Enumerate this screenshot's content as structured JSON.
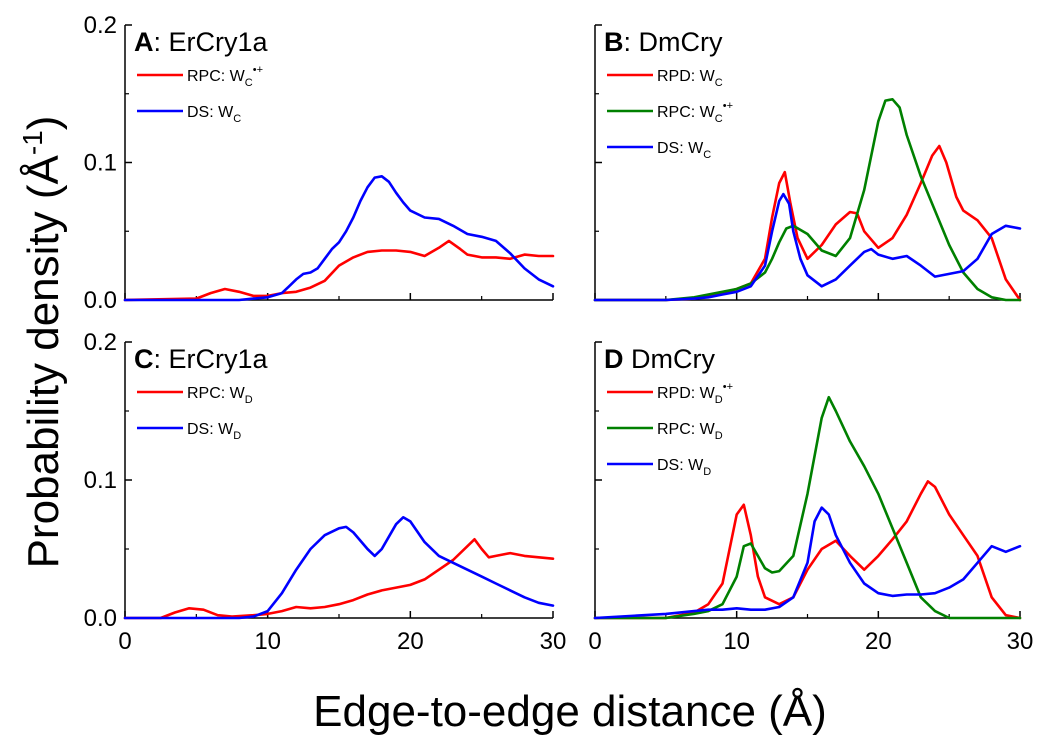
{
  "figure": {
    "ylabel_main": "Probability density (Å",
    "ylabel_sup": "-1",
    "ylabel_end": ")",
    "xlabel": "Edge-to-edge distance (Å)"
  },
  "chart_data": [
    {
      "type": "line",
      "panel_letter": "A",
      "panel_title": ": ErCry1a",
      "xlim": [
        0,
        30
      ],
      "ylim": [
        0,
        0.2
      ],
      "xticks": [
        "0",
        "10",
        "20",
        "30"
      ],
      "yticks": [
        "0.0",
        "0.1",
        "0.2"
      ],
      "legend_placement": "top-left",
      "series": [
        {
          "name": "RPC: W",
          "sub": "C",
          "sup": "•+",
          "color": "#ff0000",
          "x": [
            0,
            5,
            6,
            7,
            8,
            9,
            10,
            11,
            12,
            13,
            14,
            15,
            16,
            17,
            18,
            19,
            20,
            21,
            22,
            22.7,
            23.5,
            24,
            25,
            26,
            27,
            28,
            29,
            30
          ],
          "y": [
            0,
            0.001,
            0.005,
            0.008,
            0.006,
            0.003,
            0.003,
            0.005,
            0.006,
            0.009,
            0.014,
            0.025,
            0.031,
            0.035,
            0.036,
            0.036,
            0.035,
            0.032,
            0.038,
            0.043,
            0.037,
            0.033,
            0.031,
            0.031,
            0.03,
            0.033,
            0.032,
            0.032
          ]
        },
        {
          "name": "DS:   W",
          "sub": "C",
          "sup": "",
          "color": "#0000ff",
          "x": [
            0,
            8,
            9,
            10,
            11,
            11.5,
            12,
            12.5,
            13,
            13.5,
            14,
            14.5,
            15,
            15.5,
            16,
            16.5,
            17,
            17.5,
            18,
            18.5,
            19,
            19.5,
            20,
            21,
            22,
            23,
            24,
            25,
            26,
            27,
            28,
            29,
            30
          ],
          "y": [
            0,
            0,
            0.001,
            0.002,
            0.005,
            0.01,
            0.015,
            0.019,
            0.02,
            0.023,
            0.03,
            0.037,
            0.042,
            0.05,
            0.06,
            0.072,
            0.082,
            0.089,
            0.09,
            0.086,
            0.078,
            0.071,
            0.065,
            0.06,
            0.059,
            0.054,
            0.048,
            0.046,
            0.043,
            0.034,
            0.023,
            0.015,
            0.01
          ]
        }
      ]
    },
    {
      "type": "line",
      "panel_letter": "B",
      "panel_title": ": DmCry",
      "xlim": [
        0,
        30
      ],
      "ylim": [
        0,
        0.2
      ],
      "xticks": [
        "0",
        "10",
        "20",
        "30"
      ],
      "yticks": [],
      "legend_placement": "top-left",
      "series": [
        {
          "name": "RPD: W",
          "sub": "C",
          "sup": "",
          "color": "#ff0000",
          "x": [
            0,
            5,
            7,
            8,
            9,
            10,
            11,
            12,
            12.5,
            13,
            13.4,
            13.8,
            14.3,
            15,
            16,
            17,
            18,
            18.5,
            19,
            20,
            21,
            22,
            23,
            23.8,
            24.3,
            24.8,
            25.5,
            26,
            27,
            28,
            29,
            30
          ],
          "y": [
            0,
            0,
            0.001,
            0.003,
            0.005,
            0.008,
            0.012,
            0.03,
            0.06,
            0.085,
            0.093,
            0.07,
            0.045,
            0.03,
            0.04,
            0.055,
            0.064,
            0.063,
            0.05,
            0.038,
            0.045,
            0.062,
            0.085,
            0.105,
            0.112,
            0.1,
            0.075,
            0.065,
            0.058,
            0.045,
            0.015,
            0
          ]
        },
        {
          "name": "RPC: W",
          "sub": "C",
          "sup": "•+",
          "color": "#008000",
          "x": [
            0,
            5,
            7,
            8,
            9,
            10,
            11,
            12,
            12.5,
            13,
            13.5,
            14,
            15,
            16,
            17,
            18,
            19,
            20,
            20.5,
            21,
            21.5,
            22,
            23,
            24,
            25,
            26,
            27,
            28,
            29,
            30
          ],
          "y": [
            0,
            0,
            0.002,
            0.004,
            0.006,
            0.008,
            0.012,
            0.02,
            0.03,
            0.042,
            0.052,
            0.054,
            0.048,
            0.036,
            0.032,
            0.045,
            0.08,
            0.13,
            0.145,
            0.146,
            0.14,
            0.12,
            0.09,
            0.065,
            0.04,
            0.02,
            0.008,
            0.002,
            0,
            0
          ]
        },
        {
          "name": "DS:   W",
          "sub": "C",
          "sup": "",
          "color": "#0000ff",
          "x": [
            0,
            5,
            7,
            8,
            9,
            10,
            11,
            12,
            12.5,
            13,
            13.3,
            13.7,
            14,
            14.5,
            15,
            16,
            17,
            18,
            19,
            19.5,
            20,
            21,
            22,
            23,
            24,
            25,
            26,
            27,
            28,
            29,
            30
          ],
          "y": [
            0,
            0,
            0.001,
            0.002,
            0.004,
            0.006,
            0.01,
            0.025,
            0.05,
            0.072,
            0.077,
            0.07,
            0.05,
            0.03,
            0.018,
            0.01,
            0.015,
            0.025,
            0.035,
            0.037,
            0.033,
            0.03,
            0.032,
            0.025,
            0.017,
            0.019,
            0.021,
            0.03,
            0.048,
            0.054,
            0.052
          ]
        }
      ]
    },
    {
      "type": "line",
      "panel_letter": "C",
      "panel_title": ": ErCry1a",
      "xlim": [
        0,
        30
      ],
      "ylim": [
        0,
        0.2
      ],
      "xticks": [
        "0",
        "10",
        "20",
        "30"
      ],
      "yticks": [
        "0.0",
        "0.1",
        "0.2"
      ],
      "legend_placement": "top-left",
      "series": [
        {
          "name": "RPC: W",
          "sub": "D",
          "sup": "",
          "color": "#ff0000",
          "x": [
            0,
            2.5,
            3.5,
            4.5,
            5.5,
            6.5,
            7.5,
            9,
            10,
            11,
            12,
            13,
            14,
            15,
            16,
            17,
            18,
            19,
            20,
            21,
            22,
            23,
            24,
            24.5,
            25,
            25.5,
            26,
            27,
            28,
            29,
            30
          ],
          "y": [
            0,
            0,
            0.004,
            0.007,
            0.006,
            0.002,
            0.001,
            0.002,
            0.003,
            0.005,
            0.008,
            0.007,
            0.008,
            0.01,
            0.013,
            0.017,
            0.02,
            0.022,
            0.024,
            0.028,
            0.035,
            0.042,
            0.052,
            0.057,
            0.05,
            0.044,
            0.045,
            0.047,
            0.045,
            0.044,
            0.043
          ]
        },
        {
          "name": "DS:   W",
          "sub": "D",
          "sup": "",
          "color": "#0000ff",
          "x": [
            0,
            8,
            9,
            10,
            11,
            12,
            13,
            14,
            15,
            15.5,
            16,
            17,
            17.5,
            18,
            19,
            19.5,
            20,
            21,
            22,
            23,
            24,
            25,
            26,
            27,
            28,
            29,
            30
          ],
          "y": [
            0,
            0,
            0.001,
            0.005,
            0.018,
            0.035,
            0.05,
            0.06,
            0.065,
            0.066,
            0.062,
            0.05,
            0.045,
            0.05,
            0.068,
            0.073,
            0.07,
            0.055,
            0.045,
            0.04,
            0.035,
            0.03,
            0.025,
            0.02,
            0.015,
            0.011,
            0.009
          ]
        }
      ]
    },
    {
      "type": "line",
      "panel_letter": "D",
      "panel_title": " DmCry",
      "xlim": [
        0,
        30
      ],
      "ylim": [
        0,
        0.2
      ],
      "xticks": [
        "0",
        "10",
        "20",
        "30"
      ],
      "yticks": [],
      "legend_placement": "top-left",
      "series": [
        {
          "name": "RPD: W",
          "sub": "D",
          "sup": "•+",
          "color": "#ff0000",
          "x": [
            0,
            5,
            7,
            8,
            9,
            9.5,
            10,
            10.5,
            11,
            11.5,
            12,
            13,
            14,
            15,
            16,
            17,
            18,
            19,
            20,
            21,
            22,
            23,
            23.5,
            24,
            25,
            26,
            27,
            28,
            29,
            30
          ],
          "y": [
            0,
            0,
            0.004,
            0.01,
            0.025,
            0.05,
            0.075,
            0.082,
            0.06,
            0.03,
            0.015,
            0.01,
            0.015,
            0.035,
            0.05,
            0.056,
            0.045,
            0.035,
            0.045,
            0.057,
            0.07,
            0.09,
            0.099,
            0.095,
            0.075,
            0.06,
            0.045,
            0.015,
            0.002,
            0
          ]
        },
        {
          "name": "RPC: W",
          "sub": "D",
          "sup": "",
          "color": "#008000",
          "x": [
            0,
            5,
            7,
            8,
            9,
            10,
            10.5,
            11,
            11.5,
            12,
            12.5,
            13,
            14,
            15,
            16,
            16.5,
            17,
            18,
            19,
            20,
            21,
            22,
            23,
            24,
            25,
            26,
            27,
            28,
            29,
            30
          ],
          "y": [
            0,
            0,
            0.003,
            0.005,
            0.01,
            0.03,
            0.052,
            0.054,
            0.045,
            0.036,
            0.033,
            0.034,
            0.045,
            0.09,
            0.145,
            0.16,
            0.15,
            0.128,
            0.11,
            0.09,
            0.065,
            0.04,
            0.015,
            0.005,
            0,
            0,
            0,
            0,
            0,
            0
          ]
        },
        {
          "name": "DS:   W",
          "sub": "D",
          "sup": "",
          "color": "#0000ff",
          "x": [
            0,
            5,
            7,
            8,
            9,
            10,
            11,
            12,
            13,
            14,
            15,
            15.5,
            16,
            16.5,
            17,
            18,
            19,
            20,
            21,
            22,
            23,
            24,
            25,
            26,
            27,
            28,
            29,
            30
          ],
          "y": [
            0,
            0.003,
            0.005,
            0.006,
            0.006,
            0.007,
            0.006,
            0.006,
            0.008,
            0.015,
            0.04,
            0.07,
            0.08,
            0.075,
            0.06,
            0.04,
            0.025,
            0.018,
            0.016,
            0.017,
            0.017,
            0.018,
            0.022,
            0.028,
            0.04,
            0.052,
            0.048,
            0.052
          ]
        }
      ]
    }
  ]
}
